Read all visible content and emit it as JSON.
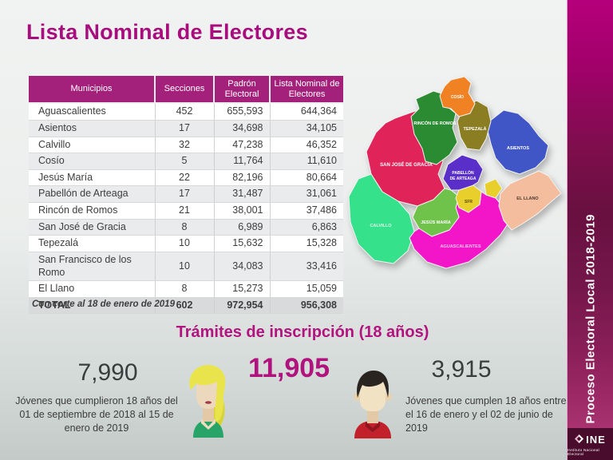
{
  "title": "Lista Nominal de Electores",
  "sidebar": {
    "vertical_text": "Proceso Electoral Local 2018-2019",
    "logo_text": "INE",
    "logo_caption": "Instituto Nacional Electoral"
  },
  "table": {
    "headers": [
      "Municipios",
      "Secciones",
      "Padrón Electoral",
      "Lista Nominal de Electores"
    ],
    "rows": [
      [
        "Aguascalientes",
        "452",
        "655,593",
        "644,364"
      ],
      [
        "Asientos",
        "17",
        "34,698",
        "34,105"
      ],
      [
        "Calvillo",
        "32",
        "47,238",
        "46,352"
      ],
      [
        "Cosío",
        "5",
        "11,764",
        "11,610"
      ],
      [
        "Jesús María",
        "22",
        "82,196",
        "80,664"
      ],
      [
        "Pabellón de Arteaga",
        "17",
        "31,487",
        "31,061"
      ],
      [
        "Rincón de Romos",
        "21",
        "38,001",
        "37,486"
      ],
      [
        "San José de Gracia",
        "8",
        "6,989",
        "6,863"
      ],
      [
        "Tepezalá",
        "10",
        "15,632",
        "15,328"
      ],
      [
        "San Francisco de los Romo",
        "10",
        "34,083",
        "33,416"
      ],
      [
        "El Llano",
        "8",
        "15,273",
        "15,059"
      ],
      [
        "TOTAL",
        "602",
        "972,954",
        "956,308"
      ]
    ],
    "note": "Con corte al 18 de enero de 2019"
  },
  "map": {
    "regions": {
      "san_jose_de_gracia": {
        "label": "SAN JOSÉ DE GRACIA",
        "color": "#e02459",
        "label_color": "#ffffff"
      },
      "calvillo": {
        "label": "CALVILLO",
        "color": "#36e18c",
        "label_color": "#d9f7ea"
      },
      "aguascalientes": {
        "label": "AGUASCALIENTES",
        "color": "#f316c8",
        "label_color": "#ffc2ef"
      },
      "jesus_maria": {
        "label": "JESÚS MARÍA",
        "color": "#6fc24a",
        "label_color": "#ffffff"
      },
      "asientos": {
        "label": "ASIENTOS",
        "color": "#4156c6",
        "label_color": "#ffffff"
      },
      "rincon_de_romos": {
        "label": "RINCÓN DE ROMOS",
        "color": "#2a8b33",
        "label_color": "#ffffff"
      },
      "tepezala": {
        "label": "TEPEZALÁ",
        "color": "#8a7d22",
        "label_color": "#ffffff"
      },
      "pabellon_de_arteaga": {
        "label1": "PABELLÓN",
        "label2": "DE ARTEAGA",
        "color": "#5a2ec8",
        "label_color": "#ffffff"
      },
      "el_llano": {
        "label": "EL LLANO",
        "color": "#f4bd9d",
        "label_color": "#4a3a30"
      },
      "sfr": {
        "label": "SFR",
        "color": "#e8cf2c",
        "label_color": "#5a4a00"
      },
      "cosio": {
        "label": "COSÍO",
        "color": "#f08223",
        "label_color": "#ffffff"
      }
    }
  },
  "stats": {
    "heading": "Trámites de inscripción (18 años)",
    "left": {
      "value": "7,990",
      "caption": "Jóvenes que cumplieron 18 años del 01 de septiembre de 2018 al 15 de enero de 2019"
    },
    "center": {
      "value": "11,905"
    },
    "right": {
      "value": "3,915",
      "caption": "Jóvenes que cumplen 18 años entre el 16 de enero y el 02 de junio de 2019"
    }
  }
}
